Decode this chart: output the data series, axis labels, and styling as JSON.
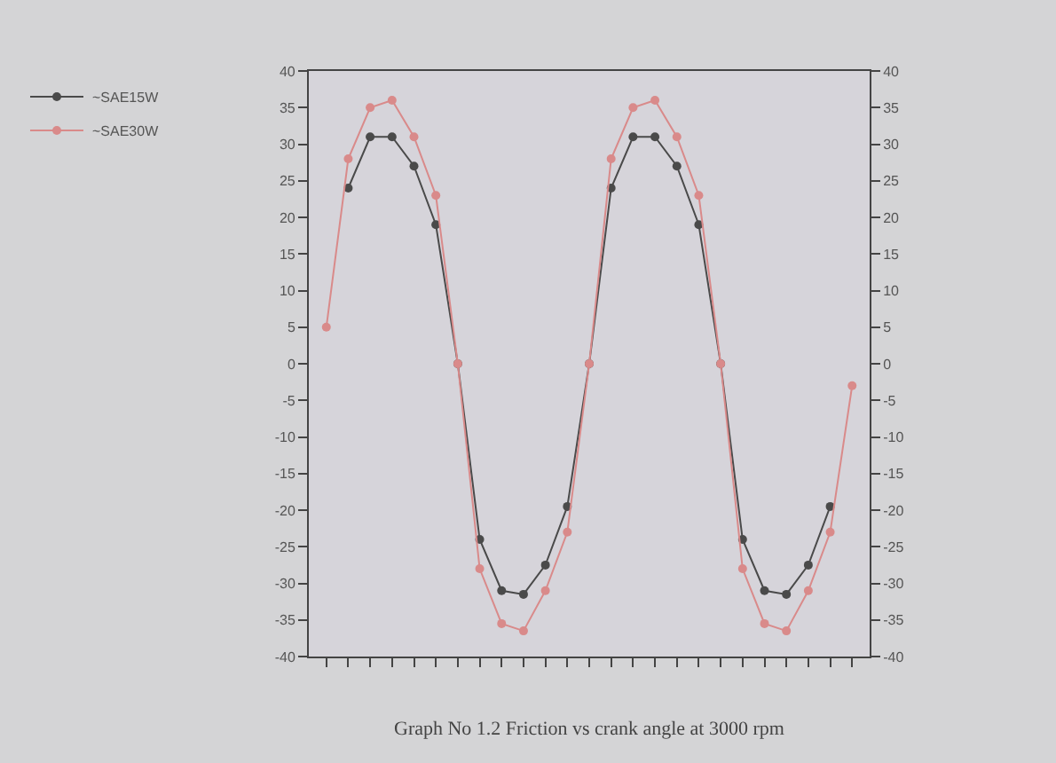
{
  "chart_data": {
    "type": "line",
    "title": "Graph No 1.2 Friction vs crank angle at 3000 rpm",
    "categories": [
      null,
      null,
      null,
      null,
      null,
      null,
      null,
      null,
      null,
      null,
      null,
      null,
      null,
      null,
      null,
      null,
      null,
      null,
      null,
      null,
      null,
      null,
      null,
      null,
      null
    ],
    "series": [
      {
        "name": "~SAE15W",
        "color": "#4a4a4a",
        "values": [
          null,
          24,
          31,
          31,
          27,
          19,
          0,
          -24,
          -31,
          -31.5,
          -27.5,
          -19.5,
          0,
          24,
          31,
          31,
          27,
          19,
          0,
          -24,
          -31,
          -31.5,
          -27.5,
          -19.5,
          null
        ]
      },
      {
        "name": "~SAE30W",
        "color": "#d98a8a",
        "values": [
          5,
          28,
          35,
          36,
          31,
          23,
          0,
          -28,
          -35.5,
          -36.5,
          -31,
          -23,
          0,
          28,
          35,
          36,
          31,
          23,
          0,
          -28,
          -35.5,
          -36.5,
          -31,
          -23,
          -3
        ]
      }
    ],
    "ylim": [
      -40,
      40
    ],
    "yticks": [
      -40,
      -35,
      -30,
      -25,
      -20,
      -15,
      -10,
      -5,
      0,
      5,
      10,
      15,
      20,
      25,
      30,
      35,
      40
    ],
    "y2lim": [
      -40,
      40
    ],
    "y2ticks": [
      -40,
      -35,
      -30,
      -25,
      -20,
      -15,
      -10,
      -5,
      0,
      5,
      10,
      15,
      20,
      25,
      30,
      35,
      40
    ],
    "tick_labels": "y",
    "grid": false,
    "legend": "top left",
    "marker": "circle",
    "line_style": "solid"
  }
}
